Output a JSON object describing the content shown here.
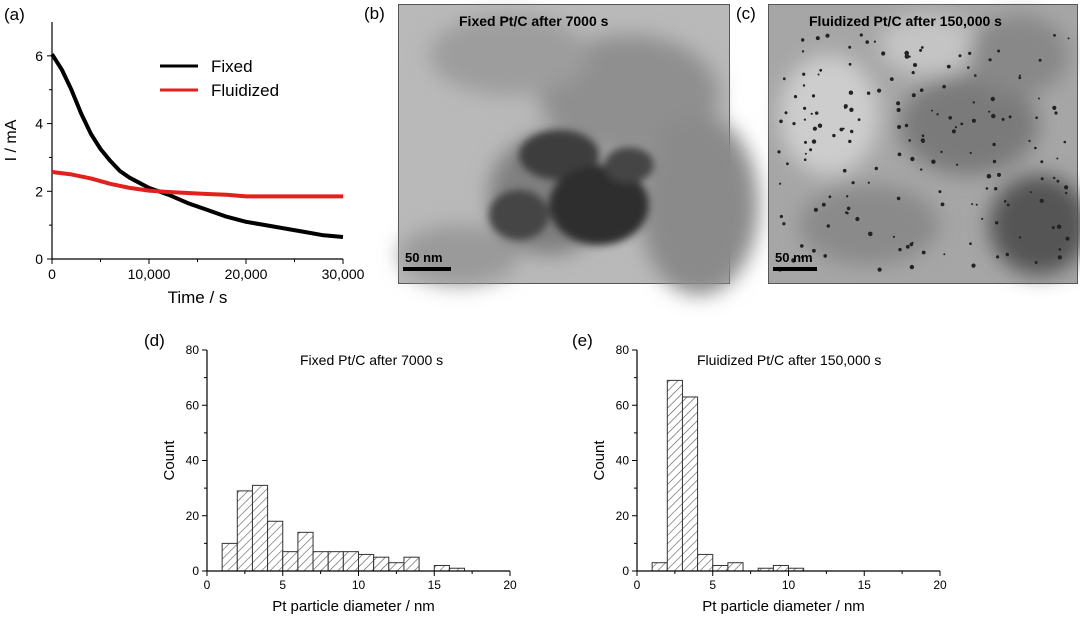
{
  "chart_data": [
    {
      "panel": "(a)",
      "type": "line",
      "xlabel": "Time / s",
      "ylabel": "I / mA",
      "xlim": [
        0,
        30000
      ],
      "ylim": [
        0,
        7
      ],
      "xticks": [
        0,
        10000,
        20000,
        30000
      ],
      "xtick_labels": [
        "0",
        "10,000",
        "20,000",
        "30,000"
      ],
      "yticks": [
        0,
        2,
        4,
        6
      ],
      "ytick_labels": [
        "0",
        "2",
        "4",
        "6"
      ],
      "legend_placement": "top-right",
      "series": [
        {
          "name": "Fixed",
          "color": "#000000",
          "x": [
            0,
            1000,
            2000,
            3000,
            4000,
            5000,
            6000,
            7000,
            8000,
            9000,
            10000,
            12000,
            14000,
            16000,
            18000,
            20000,
            22000,
            24000,
            26000,
            28000,
            30000
          ],
          "y": [
            6.05,
            5.6,
            5.0,
            4.3,
            3.7,
            3.25,
            2.9,
            2.6,
            2.4,
            2.25,
            2.1,
            1.9,
            1.65,
            1.45,
            1.25,
            1.1,
            1.0,
            0.9,
            0.8,
            0.7,
            0.65
          ]
        },
        {
          "name": "Fluidized",
          "color": "#e3201b",
          "x": [
            0,
            2000,
            4000,
            6000,
            8000,
            10000,
            12000,
            14000,
            16000,
            18000,
            20000,
            22000,
            24000,
            26000,
            28000,
            30000
          ],
          "y": [
            2.57,
            2.5,
            2.38,
            2.22,
            2.1,
            2.02,
            1.98,
            1.95,
            1.92,
            1.9,
            1.85,
            1.85,
            1.85,
            1.85,
            1.85,
            1.85
          ]
        }
      ]
    },
    {
      "panel": "(d)",
      "type": "bar",
      "title": "Fixed Pt/C after 7000 s",
      "xlabel": "Pt particle diameter / nm",
      "ylabel": "Count",
      "xlim": [
        0,
        20
      ],
      "ylim": [
        0,
        80
      ],
      "xticks": [
        0,
        5,
        10,
        15,
        20
      ],
      "yticks": [
        0,
        20,
        40,
        60,
        80
      ],
      "bin_width": 1,
      "bin_starts": [
        1,
        2,
        3,
        4,
        5,
        6,
        7,
        8,
        9,
        10,
        11,
        12,
        13,
        14,
        15,
        16
      ],
      "values": [
        10,
        29,
        31,
        18,
        7,
        14,
        7,
        7,
        7,
        6,
        5,
        3,
        5,
        0,
        2,
        1
      ]
    },
    {
      "panel": "(e)",
      "type": "bar",
      "title": "Fluidized Pt/C after 150,000 s",
      "xlabel": "Pt particle diameter / nm",
      "ylabel": "Count",
      "xlim": [
        0,
        20
      ],
      "ylim": [
        0,
        80
      ],
      "xticks": [
        0,
        5,
        10,
        15,
        20
      ],
      "yticks": [
        0,
        20,
        40,
        60,
        80
      ],
      "bin_width": 1,
      "bin_starts": [
        1,
        2,
        3,
        4,
        5,
        6,
        7,
        8,
        9,
        10
      ],
      "values": [
        3,
        69,
        63,
        6,
        2,
        3,
        0,
        1,
        2,
        1
      ]
    }
  ],
  "images": {
    "b": {
      "label": "(b)",
      "caption": "Fixed Pt/C after 7000 s",
      "scalebar": "50 nm"
    },
    "c": {
      "label": "(c)",
      "caption": "Fluidized Pt/C after 150,000 s",
      "scalebar": "50 nm"
    }
  }
}
